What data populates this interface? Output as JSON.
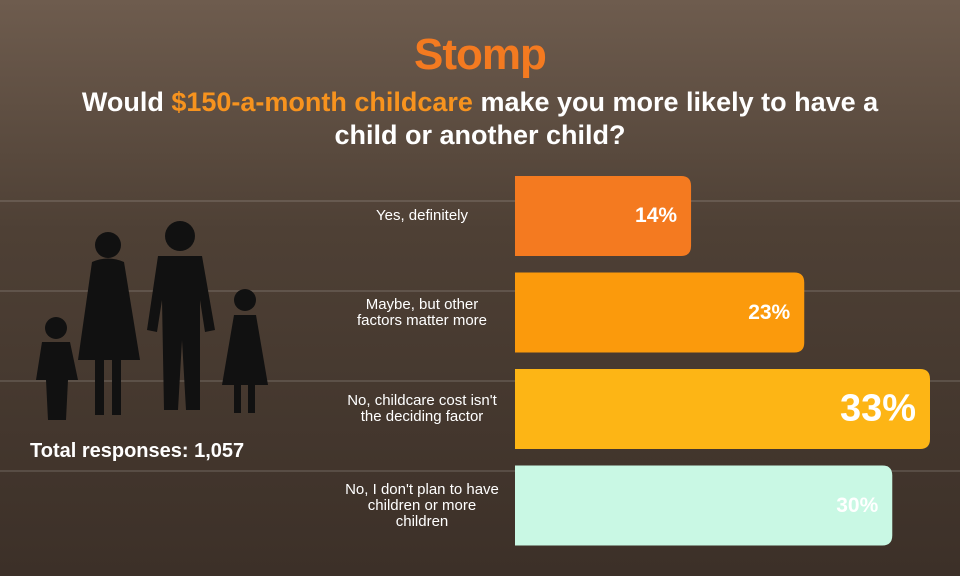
{
  "brand": "Stomp",
  "chart_data": {
    "type": "hbar",
    "title": {
      "before": "Would",
      "highlight": "$150-a-month childcare",
      "after": "make you more likely to have a child or another child?"
    },
    "annotation": "Total responses: 1,057",
    "categories": [
      "Yes, definitely",
      "Maybe, but other factors matter more",
      "No, childcare cost isn't the deciding factor",
      "No, I don't plan to have children or more children"
    ],
    "values": [
      14,
      23,
      33,
      30
    ],
    "value_labels": [
      "14%",
      "23%",
      "33%",
      "30%"
    ],
    "colors": [
      "#f47a20",
      "#fb9a0c",
      "#fdb515",
      "#c9f8e4"
    ],
    "xlim": [
      0,
      33
    ]
  }
}
